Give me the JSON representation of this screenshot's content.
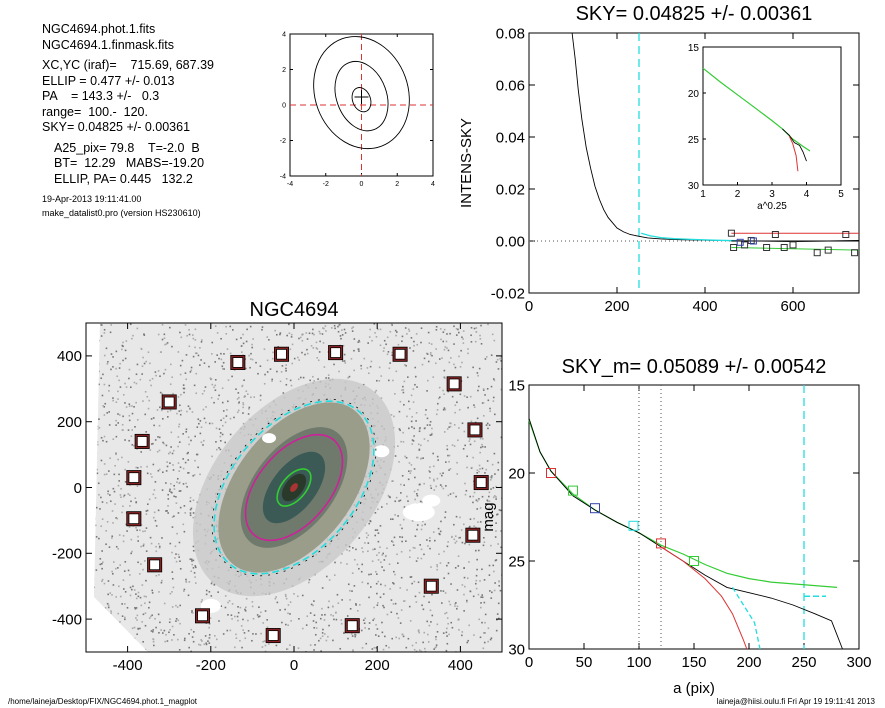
{
  "header": {
    "lines_a": [
      "NGC4694.phot.1.fits",
      "NGC4694.1.finmask.fits"
    ],
    "lines_b": [
      "XC,YC (iraf)=    715.69, 687.39",
      "ELLIP = 0.477 +/- 0.013",
      "PA    = 143.3 +/-   0.3",
      "range=  100.-  120.",
      "SKY= 0.04825 +/- 0.00361"
    ],
    "lines_c": [
      "A25_pix= 79.8    T=-2.0  B",
      "BT=  12.29   MABS=-19.20",
      "ELLIP, PA= 0.445   132.2"
    ],
    "lines_d": [
      "19-Apr-2013 19:11:41.00",
      "make_datalist0.pro (version HS230610)"
    ]
  },
  "footer": {
    "path": "/home/laineja/Desktop/FIX/NGC4694.phot.1_magplot",
    "user": "laineja@hiisi.oulu.fi  Fri Apr 19 19:11:41 2013"
  },
  "colors": {
    "cyan": "#22dddd",
    "red": "#dd3333",
    "green": "#33cc33",
    "blue": "#3344aa",
    "frame": "#882222"
  },
  "chart_data": [
    {
      "id": "contour",
      "type": "contour",
      "title": "",
      "xlim": [
        -4,
        4
      ],
      "ylim": [
        -4,
        4
      ],
      "xticks": [
        -4,
        -2,
        0,
        2,
        4
      ],
      "yticks": [
        -4,
        -2,
        0,
        2,
        4
      ],
      "contours": [
        {
          "cx": 0,
          "cy": 0.3,
          "rx": 0.5,
          "ry": 0.7
        },
        {
          "cx": 0,
          "cy": 0.5,
          "rx": 1.4,
          "ry": 2.0
        },
        {
          "cx": 0,
          "cy": 0.7,
          "rx": 2.6,
          "ry": 3.2
        }
      ],
      "center": [
        0,
        0
      ]
    },
    {
      "id": "sky",
      "type": "line",
      "title": "SKY= 0.04825 +/- 0.00361",
      "xlabel": "",
      "ylabel": "INTENS-SKY",
      "xlim": [
        0,
        750
      ],
      "ylim": [
        -0.02,
        0.08
      ],
      "xticks": [
        0,
        200,
        400,
        600
      ],
      "yticks": [
        -0.02,
        0.0,
        0.02,
        0.04,
        0.06,
        0.08
      ],
      "ytick_labels": [
        "-0.02",
        "0.00",
        "0.02",
        "0.04",
        "0.06",
        "0.08"
      ],
      "vline": 250,
      "profile": [
        [
          98,
          0.08
        ],
        [
          105,
          0.07
        ],
        [
          112,
          0.058
        ],
        [
          120,
          0.047
        ],
        [
          130,
          0.036
        ],
        [
          140,
          0.028
        ],
        [
          150,
          0.021
        ],
        [
          160,
          0.016
        ],
        [
          170,
          0.012
        ],
        [
          180,
          0.009
        ],
        [
          190,
          0.007
        ],
        [
          200,
          0.005
        ],
        [
          215,
          0.0035
        ],
        [
          230,
          0.0025
        ],
        [
          250,
          0.0018
        ],
        [
          270,
          0.0012
        ],
        [
          300,
          0.0008
        ],
        [
          340,
          0.0005
        ],
        [
          400,
          0.0003
        ],
        [
          460,
          0.0001
        ],
        [
          520,
          0.0
        ],
        [
          600,
          -0.0002
        ],
        [
          680,
          0.0
        ],
        [
          750,
          0.0002
        ]
      ],
      "cyan_steps": [
        [
          255,
          0.003
        ],
        [
          275,
          0.002
        ],
        [
          300,
          0.0013
        ],
        [
          330,
          0.0009
        ],
        [
          370,
          0.0006
        ],
        [
          420,
          0.0003
        ],
        [
          470,
          0.0001
        ]
      ],
      "squares_red": [
        [
          460,
          0.003
        ],
        [
          505,
          0.0002
        ],
        [
          560,
          0.0025
        ],
        [
          600,
          -0.0015
        ],
        [
          720,
          0.0025
        ]
      ],
      "squares_green": [
        [
          465,
          -0.0025
        ],
        [
          490,
          -0.0015
        ],
        [
          540,
          -0.0025
        ],
        [
          580,
          -0.0025
        ],
        [
          655,
          -0.0045
        ],
        [
          680,
          -0.0035
        ],
        [
          740,
          -0.0045
        ]
      ],
      "squares_blue": [
        [
          480,
          -0.0005
        ],
        [
          510,
          0.0
        ]
      ],
      "red_line": 0.003,
      "inset": {
        "xlabel": "a^0.25",
        "xlim": [
          1,
          5
        ],
        "ylim": [
          15,
          30
        ],
        "xticks": [
          1,
          2,
          3,
          4,
          5
        ],
        "yticks": [
          15,
          20,
          25,
          30
        ],
        "green": [
          [
            1.0,
            17.3
          ],
          [
            1.5,
            18.8
          ],
          [
            2.0,
            20.2
          ],
          [
            2.5,
            21.6
          ],
          [
            3.0,
            23.0
          ],
          [
            3.3,
            23.9
          ],
          [
            3.6,
            25.0
          ],
          [
            3.9,
            25.8
          ],
          [
            4.1,
            26.3
          ]
        ],
        "black": [
          [
            3.3,
            23.9
          ],
          [
            3.5,
            24.6
          ],
          [
            3.65,
            25.4
          ],
          [
            3.8,
            25.7
          ],
          [
            3.9,
            26.4
          ],
          [
            4.0,
            27.4
          ]
        ],
        "red": [
          [
            3.5,
            24.7
          ],
          [
            3.6,
            25.5
          ],
          [
            3.7,
            26.8
          ],
          [
            3.75,
            28.5
          ]
        ]
      }
    },
    {
      "id": "image",
      "type": "scatter",
      "title": "NGC4694",
      "xlim": [
        -500,
        500
      ],
      "ylim": [
        -500,
        500
      ],
      "xticks": [
        -400,
        -200,
        0,
        200,
        400
      ],
      "yticks": [
        -400,
        -200,
        0,
        200,
        400
      ],
      "boxes": [
        [
          -135,
          380
        ],
        [
          -30,
          405
        ],
        [
          100,
          410
        ],
        [
          255,
          405
        ],
        [
          385,
          315
        ],
        [
          -300,
          260
        ],
        [
          -365,
          140
        ],
        [
          435,
          175
        ],
        [
          -385,
          30
        ],
        [
          450,
          15
        ],
        [
          -385,
          -95
        ],
        [
          430,
          -145
        ],
        [
          -335,
          -235
        ],
        [
          330,
          -300
        ],
        [
          -220,
          -390
        ],
        [
          140,
          -420
        ],
        [
          -50,
          -450
        ]
      ],
      "ellipses": [
        {
          "rx": 100,
          "ry": 195,
          "pa": 143.3,
          "color": "cyan"
        },
        {
          "rx": 58,
          "ry": 112,
          "pa": 143.3,
          "color": "magenta"
        },
        {
          "rx": 20,
          "ry": 42,
          "pa": 143.3,
          "color": "green"
        }
      ]
    },
    {
      "id": "mag",
      "type": "line",
      "title": "SKY_m=  0.05089 +/- 0.00542",
      "xlabel": "a (pix)",
      "ylabel": "mag",
      "xlim": [
        0,
        300
      ],
      "ylim": [
        15,
        30
      ],
      "xticks": [
        0,
        50,
        100,
        150,
        200,
        250,
        300
      ],
      "yticks": [
        15,
        20,
        25,
        30
      ],
      "vlines_dotted": [
        100,
        120
      ],
      "vline_cyan": 250,
      "green": [
        [
          0,
          17.0
        ],
        [
          10,
          18.8
        ],
        [
          20,
          19.9
        ],
        [
          40,
          21.2
        ],
        [
          60,
          22.1
        ],
        [
          80,
          22.8
        ],
        [
          100,
          23.4
        ],
        [
          120,
          24.1
        ],
        [
          140,
          24.6
        ],
        [
          160,
          25.2
        ],
        [
          180,
          25.7
        ],
        [
          200,
          26.0
        ],
        [
          220,
          26.2
        ],
        [
          240,
          26.3
        ],
        [
          260,
          26.4
        ],
        [
          280,
          26.5
        ]
      ],
      "black": [
        [
          0,
          16.9
        ],
        [
          10,
          18.8
        ],
        [
          20,
          19.9
        ],
        [
          40,
          21.3
        ],
        [
          60,
          22.1
        ],
        [
          80,
          22.8
        ],
        [
          100,
          23.4
        ],
        [
          120,
          24.2
        ],
        [
          140,
          25.0
        ],
        [
          160,
          25.8
        ],
        [
          180,
          26.5
        ],
        [
          200,
          26.8
        ],
        [
          220,
          27.1
        ],
        [
          240,
          27.5
        ],
        [
          260,
          28.0
        ],
        [
          275,
          28.4
        ],
        [
          285,
          30.0
        ]
      ],
      "red": [
        [
          120,
          24.2
        ],
        [
          140,
          25.0
        ],
        [
          160,
          26.0
        ],
        [
          175,
          27.0
        ],
        [
          185,
          28.0
        ],
        [
          195,
          29.5
        ],
        [
          198,
          30.0
        ]
      ],
      "cyan_dash": [
        [
          185,
          26.5
        ],
        [
          195,
          27.5
        ],
        [
          205,
          28.5
        ],
        [
          210,
          30.0
        ]
      ],
      "cyan_hline": {
        "x0": 250,
        "x1": 270,
        "y": 27.0
      },
      "squares": [
        {
          "x": 20,
          "y": 20.0,
          "color": "red"
        },
        {
          "x": 40,
          "y": 21.0,
          "color": "green"
        },
        {
          "x": 60,
          "y": 22.0,
          "color": "blue"
        },
        {
          "x": 95,
          "y": 23.0,
          "color": "cyan"
        },
        {
          "x": 120,
          "y": 24.0,
          "color": "red"
        },
        {
          "x": 150,
          "y": 25.0,
          "color": "green"
        }
      ]
    }
  ]
}
